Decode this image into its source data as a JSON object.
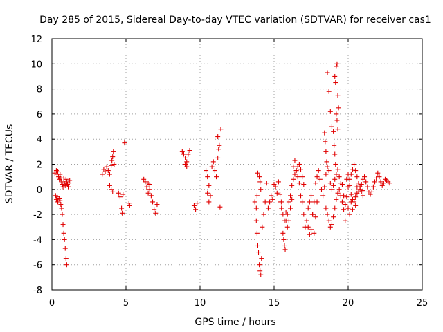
{
  "chart_data": {
    "type": "scatter",
    "title": "Day 285 of 2015, Sidereal Day-to-day VTEC variation (SDTVAR) for receiver cas1",
    "xlabel": "GPS time / hours",
    "ylabel": "SDTVAR / TECUs",
    "xlim": [
      0,
      25
    ],
    "ylim": [
      -8,
      12
    ],
    "xticks": [
      0,
      5,
      10,
      15,
      20,
      25
    ],
    "yticks": [
      -8,
      -6,
      -4,
      -2,
      0,
      2,
      4,
      6,
      8,
      10,
      12
    ],
    "grid": true,
    "marker": "+",
    "color": "#e00000",
    "series": [
      {
        "name": "cas1",
        "x": [
          0.2,
          0.3,
          0.35,
          0.4,
          0.45,
          0.5,
          0.55,
          0.6,
          0.65,
          0.7,
          0.75,
          0.8,
          0.85,
          0.9,
          0.95,
          1.0,
          1.05,
          1.1,
          1.15,
          1.2,
          0.25,
          0.3,
          0.35,
          0.4,
          0.5,
          0.55,
          0.6,
          0.65,
          0.7,
          0.75,
          0.8,
          0.85,
          0.9,
          0.95,
          1.0,
          3.4,
          3.5,
          3.6,
          3.7,
          3.8,
          3.9,
          4.0,
          4.05,
          4.1,
          4.15,
          4.2,
          3.9,
          4.0,
          4.1,
          4.5,
          4.6,
          4.7,
          4.75,
          4.8,
          4.9,
          5.2,
          5.25,
          6.2,
          6.3,
          6.4,
          6.5,
          6.6,
          6.7,
          6.8,
          6.9,
          7.0,
          7.1,
          6.5,
          6.6,
          8.8,
          8.9,
          9.0,
          9.1,
          9.2,
          9.3,
          9.0,
          9.1,
          9.6,
          9.7,
          9.8,
          10.4,
          10.5,
          10.6,
          10.7,
          10.8,
          10.9,
          11.0,
          11.1,
          11.2,
          11.3,
          11.4,
          11.2,
          11.25,
          10.5,
          10.6,
          11.35,
          13.7,
          13.8,
          13.85,
          13.9,
          13.95,
          14.0,
          14.05,
          14.1,
          14.15,
          14.2,
          14.3,
          14.4,
          14.5,
          13.9,
          14.0,
          14.05,
          14.1,
          13.8,
          13.85,
          14.6,
          14.7,
          14.8,
          14.9,
          15.0,
          15.1,
          15.2,
          15.3,
          15.4,
          15.5,
          15.6,
          15.65,
          15.7,
          15.75,
          15.8,
          15.9,
          16.0,
          16.1,
          16.2,
          16.3,
          16.4,
          16.5,
          16.6,
          16.7,
          16.8,
          16.9,
          17.0,
          15.4,
          15.5,
          15.6,
          15.7,
          15.8,
          15.9,
          16.0,
          16.1,
          16.2,
          16.3,
          16.4,
          16.5,
          16.6,
          16.7,
          16.8,
          16.9,
          17.0,
          17.1,
          17.2,
          17.3,
          17.4,
          17.5,
          17.6,
          17.7,
          17.8,
          17.9,
          17.2,
          17.3,
          17.4,
          17.5,
          17.6,
          17.7,
          17.8,
          17.9,
          18.0,
          18.1,
          18.2,
          18.3,
          18.4,
          18.5,
          18.6,
          18.7,
          18.8,
          18.9,
          19.0,
          19.1,
          19.2,
          19.3,
          19.4,
          19.5,
          18.4,
          18.45,
          18.5,
          18.55,
          18.6,
          18.7,
          18.8,
          18.9,
          19.0,
          19.05,
          19.1,
          19.15,
          19.2,
          19.25,
          19.3,
          19.35,
          19.2,
          19.25,
          19.3,
          19.1,
          19.15,
          18.5,
          18.6,
          18.7,
          18.8,
          18.9,
          19.0,
          19.1,
          19.2,
          19.3,
          19.4,
          19.5,
          19.6,
          19.7,
          19.8,
          19.9,
          20.0,
          20.1,
          20.2,
          20.3,
          20.4,
          20.5,
          20.6,
          20.7,
          20.8,
          20.9,
          21.0,
          19.6,
          19.7,
          19.8,
          19.9,
          20.0,
          20.1,
          20.2,
          20.3,
          20.4,
          20.5,
          20.6,
          20.7,
          20.8,
          20.9,
          21.0,
          21.1,
          21.2,
          21.3,
          21.4,
          21.5,
          21.6,
          21.7,
          21.8,
          21.9,
          22.0,
          22.1,
          22.2,
          22.3,
          22.4,
          22.5,
          22.6,
          22.7,
          22.8,
          20.0,
          20.2,
          20.4,
          20.6,
          20.8,
          21.0,
          19.8,
          20.1,
          20.3,
          20.5
        ],
        "y": [
          1.3,
          1.5,
          1.2,
          1.4,
          1.0,
          0.8,
          1.2,
          0.9,
          0.6,
          0.4,
          0.2,
          0.9,
          0.5,
          0.3,
          0.8,
          0.6,
          0.4,
          0.2,
          0.5,
          0.7,
          -0.5,
          -0.8,
          -0.6,
          -1.0,
          -0.7,
          -0.9,
          -1.2,
          -1.5,
          -2.0,
          -2.8,
          -3.5,
          -4.0,
          -4.7,
          -5.5,
          -6.0,
          1.2,
          1.6,
          1.4,
          1.8,
          1.5,
          1.2,
          1.9,
          2.3,
          2.6,
          3.0,
          2.0,
          0.3,
          0.0,
          -0.2,
          -0.3,
          -0.6,
          -1.5,
          -1.9,
          -0.4,
          3.7,
          -1.1,
          -1.3,
          0.8,
          0.6,
          0.2,
          -0.3,
          0.4,
          -0.5,
          -1.0,
          -1.6,
          -1.9,
          -1.2,
          0.5,
          0.0,
          3.0,
          2.8,
          2.5,
          2.2,
          2.8,
          3.1,
          2.0,
          1.8,
          -1.3,
          -1.6,
          -1.1,
          1.5,
          1.0,
          0.3,
          -0.5,
          1.8,
          2.2,
          1.5,
          1.0,
          2.5,
          3.5,
          4.8,
          4.2,
          3.2,
          -0.3,
          -1.0,
          -1.4,
          -1.0,
          -2.5,
          -3.5,
          -4.5,
          -5.0,
          -6.0,
          -6.5,
          -6.8,
          -5.5,
          -3.0,
          -2.0,
          -1.0,
          0.5,
          1.3,
          1.0,
          0.6,
          0.0,
          -1.5,
          -0.5,
          -1.5,
          -1.0,
          -0.5,
          -0.8,
          0.4,
          0.2,
          -0.3,
          0.6,
          -0.4,
          -1.0,
          -3.5,
          -4.0,
          -4.5,
          -4.8,
          -2.5,
          -2.0,
          -1.0,
          -0.5,
          0.3,
          0.8,
          1.2,
          1.5,
          1.8,
          2.0,
          1.6,
          1.0,
          0.4,
          -1.0,
          -1.5,
          -2.0,
          -2.5,
          -1.8,
          -3.0,
          -2.5,
          -1.5,
          -0.8,
          1.8,
          2.3,
          1.5,
          1.0,
          0.5,
          -0.5,
          -1.0,
          -2.0,
          -3.0,
          -2.5,
          -1.5,
          -1.0,
          -0.5,
          -2.0,
          -3.5,
          -2.2,
          -1.0,
          -2.5,
          -3.0,
          -3.6,
          -3.2,
          -2.0,
          -1.0,
          0.5,
          1.0,
          1.5,
          0.8,
          0.0,
          -0.5,
          0.2,
          1.2,
          1.8,
          1.5,
          0.5,
          0.0,
          0.3,
          0.8,
          1.2,
          1.6,
          1.0,
          0.5,
          4.5,
          3.8,
          3.0,
          2.2,
          9.3,
          7.8,
          6.2,
          5.0,
          4.6,
          3.5,
          9.0,
          8.5,
          9.8,
          10.0,
          7.5,
          6.5,
          6.0,
          5.5,
          4.8,
          2.8,
          2.0,
          -1.5,
          -2.0,
          -2.5,
          -3.0,
          -2.8,
          -2.2,
          -1.5,
          -0.8,
          -0.3,
          0.0,
          -0.5,
          -1.0,
          -1.6,
          -1.2,
          -0.6,
          0.2,
          0.8,
          1.2,
          1.6,
          2.0,
          1.5,
          1.0,
          0.5,
          0.2,
          -0.2,
          -0.5,
          0.4,
          -0.5,
          -1.2,
          0.8,
          1.2,
          0.3,
          -0.4,
          -0.8,
          -1.0,
          -0.6,
          0.2,
          -0.2,
          0.0,
          0.4,
          0.8,
          1.0,
          0.6,
          0.2,
          -0.2,
          -0.4,
          -0.2,
          0.2,
          0.6,
          0.9,
          1.3,
          1.0,
          0.6,
          0.3,
          0.5,
          0.8,
          0.7,
          0.6,
          0.5,
          -1.5,
          -1.0,
          -0.8,
          -0.3,
          0.2,
          -0.1,
          -2.5,
          -2.0,
          -1.6,
          -1.3
        ]
      }
    ]
  }
}
